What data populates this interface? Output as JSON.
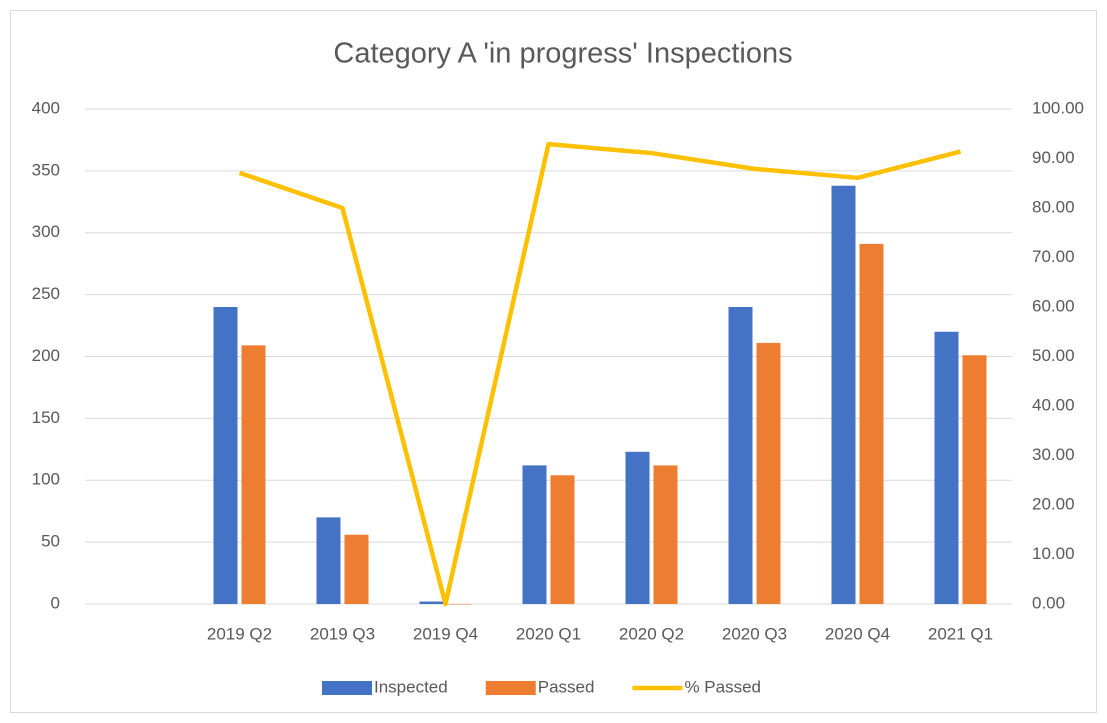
{
  "chart_data": {
    "type": "bar-line",
    "title": "Category A 'in progress' Inspections",
    "categories": [
      null,
      "2019 Q2",
      "2019 Q3",
      "2019 Q4",
      "2020 Q1",
      "2020 Q2",
      "2020 Q3",
      "2020 Q4",
      "2021 Q1"
    ],
    "series": [
      {
        "name": "Inspected",
        "type": "bar",
        "color": "#4472c4",
        "values": [
          null,
          240,
          70,
          2,
          112,
          123,
          240,
          338,
          220
        ]
      },
      {
        "name": "Passed",
        "type": "bar",
        "color": "#ed7d31",
        "values": [
          null,
          209,
          56,
          0,
          104,
          112,
          211,
          291,
          201
        ]
      },
      {
        "name": "% Passed",
        "type": "line",
        "axis": "y2",
        "color": "#ffc000",
        "values": [
          null,
          87.1,
          80,
          0,
          92.9,
          91.1,
          87.9,
          86.1,
          91.4
        ]
      }
    ],
    "ylim": [
      0,
      400
    ],
    "yticks": [
      0,
      50,
      100,
      150,
      200,
      250,
      300,
      350,
      400
    ],
    "y2lim": [
      0,
      100
    ],
    "y2ticks": [
      {
        "value": 0,
        "label": "0.00"
      },
      {
        "value": 10,
        "label": "10.00"
      },
      {
        "value": 20,
        "label": "20.00"
      },
      {
        "value": 30,
        "label": "30.00"
      },
      {
        "value": 40,
        "label": "40.00"
      },
      {
        "value": 50,
        "label": "50.00"
      },
      {
        "value": 60,
        "label": "60.00"
      },
      {
        "value": 70,
        "label": "70.00"
      },
      {
        "value": 80,
        "label": "80.00"
      },
      {
        "value": 90,
        "label": "90.00"
      },
      {
        "value": 100,
        "label": "100.00"
      }
    ],
    "grid": true,
    "legend": "bottom"
  }
}
